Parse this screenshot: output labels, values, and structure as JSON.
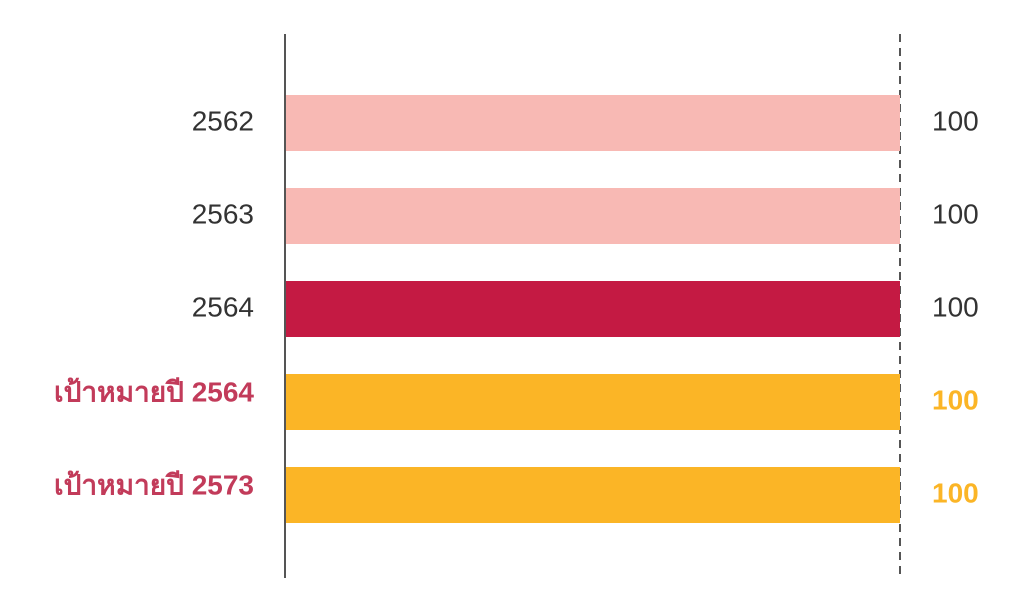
{
  "chart_data": {
    "type": "bar",
    "orientation": "horizontal",
    "categories": [
      "2562",
      "2563",
      "2564",
      "เป้าหมายปี 2564",
      "เป้าหมายปี 2573"
    ],
    "values": [
      100,
      100,
      100,
      100,
      100
    ],
    "value_labels": [
      "100",
      "100",
      "100",
      "100",
      "100"
    ],
    "bar_colors": [
      "#f8b9b4",
      "#f8b9b4",
      "#c41a43",
      "#fbb526",
      "#fbb526"
    ],
    "label_colors": [
      "#333333",
      "#333333",
      "#333333",
      "#c23b5a",
      "#fbb526"
    ],
    "category_label_colors": [
      "#333333",
      "#333333",
      "#333333",
      "#c23b5a",
      "#c23b5a"
    ],
    "value_label_colors": [
      "#333333",
      "#333333",
      "#333333",
      "#fbb526",
      "#fbb526"
    ],
    "emphasized": [
      false,
      false,
      false,
      true,
      true
    ],
    "xlim": [
      0,
      100
    ],
    "title": "",
    "xlabel": "",
    "ylabel": "",
    "grid": false,
    "reference_line": {
      "value": 100,
      "style": "dashed"
    }
  }
}
